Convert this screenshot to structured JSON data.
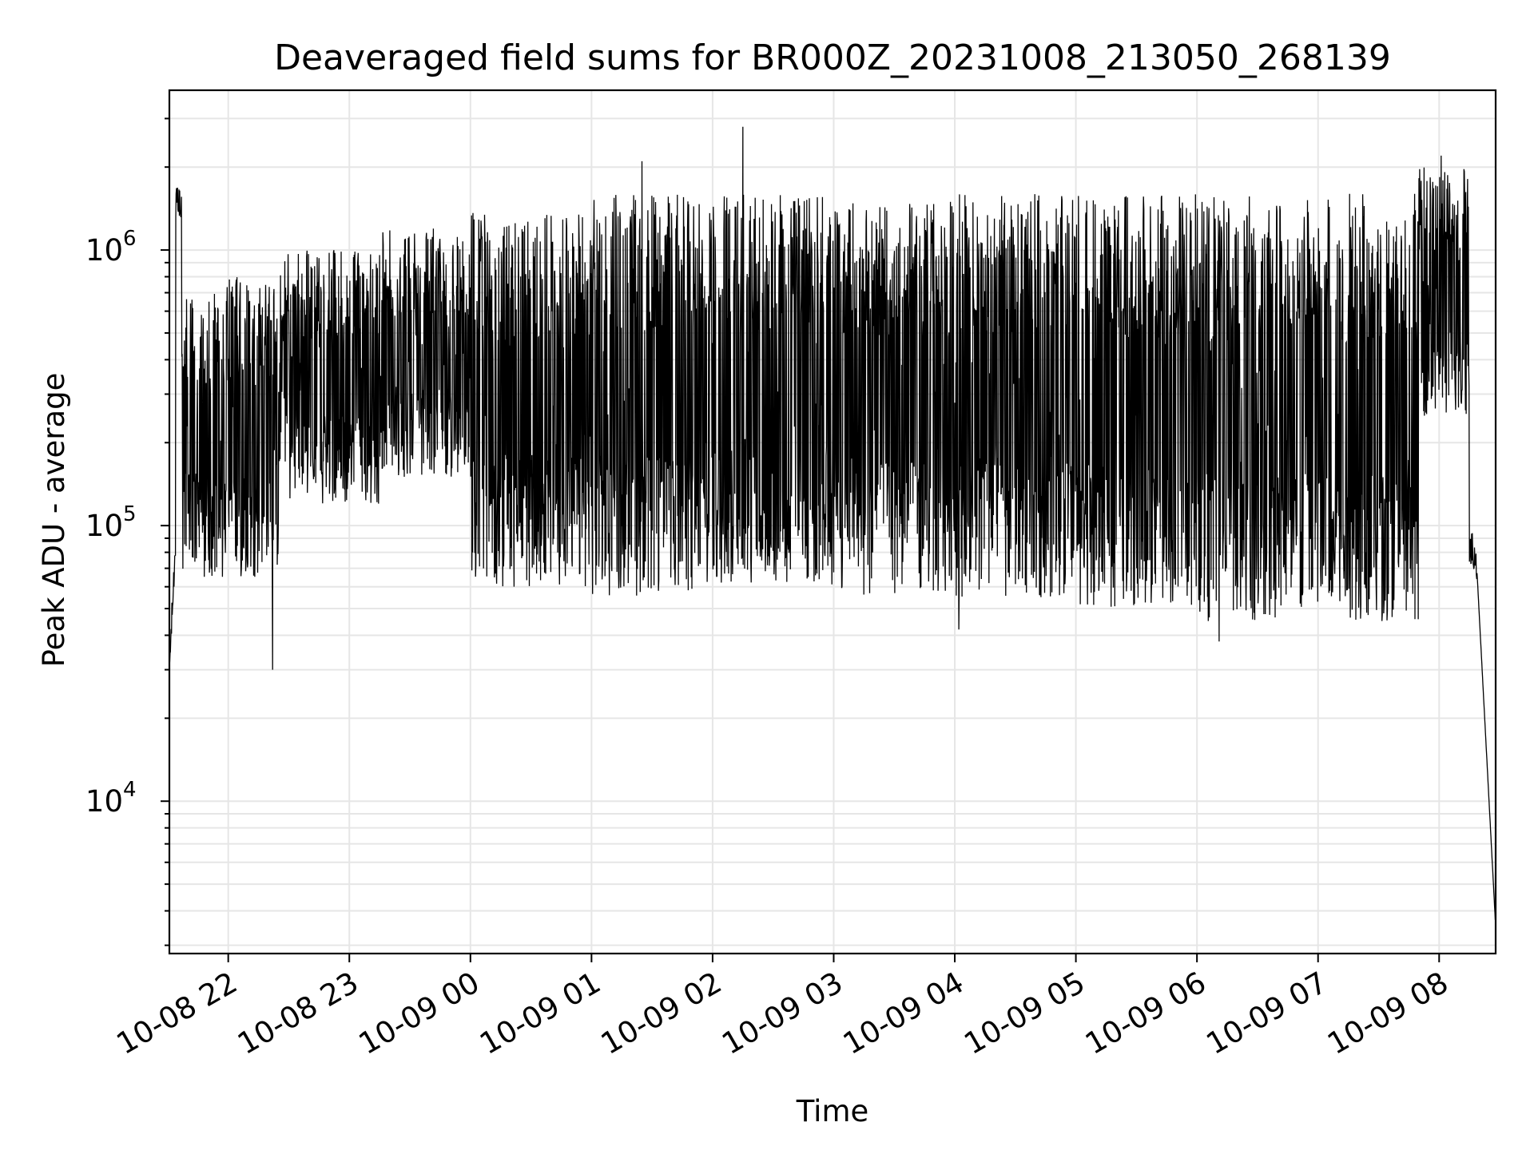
{
  "chart_data": {
    "type": "line",
    "title": "Deaveraged field sums for BR000Z_20231008_213050_268139",
    "xlabel": "Time",
    "ylabel": "Peak ADU - average",
    "yscale": "log",
    "ylim": [
      2800,
      3800000
    ],
    "xlim": [
      "2023-10-08 21:30:50",
      "2023-10-09 08:28:00"
    ],
    "grid": true,
    "grid_minor_y": true,
    "line_color": "#000000",
    "x_ticks": [
      {
        "t": "2023-10-08 22:00",
        "label": "10-08 22"
      },
      {
        "t": "2023-10-08 23:00",
        "label": "10-08 23"
      },
      {
        "t": "2023-10-09 00:00",
        "label": "10-09 00"
      },
      {
        "t": "2023-10-09 01:00",
        "label": "10-09 01"
      },
      {
        "t": "2023-10-09 02:00",
        "label": "10-09 02"
      },
      {
        "t": "2023-10-09 03:00",
        "label": "10-09 03"
      },
      {
        "t": "2023-10-09 04:00",
        "label": "10-09 04"
      },
      {
        "t": "2023-10-09 05:00",
        "label": "10-09 05"
      },
      {
        "t": "2023-10-09 06:00",
        "label": "10-09 06"
      },
      {
        "t": "2023-10-09 07:00",
        "label": "10-09 07"
      },
      {
        "t": "2023-10-09 08:00",
        "label": "10-09 08"
      }
    ],
    "y_ticks": [
      {
        "value": 10000,
        "base": "10",
        "exp": "4"
      },
      {
        "value": 100000,
        "base": "10",
        "exp": "5"
      },
      {
        "value": 1000000,
        "base": "10",
        "exp": "6"
      }
    ],
    "segments": [
      {
        "start": "2023-10-08 21:30:50",
        "end": "2023-10-08 21:34",
        "lo": 30000,
        "hi": 90000,
        "note": "rise"
      },
      {
        "start": "2023-10-08 21:34",
        "end": "2023-10-08 21:37",
        "lo": 1300000,
        "hi": 1700000
      },
      {
        "start": "2023-10-08 21:37",
        "end": "2023-10-08 22:25",
        "lo": 65000,
        "hi": 800000
      },
      {
        "start": "2023-10-08 22:25",
        "end": "2023-10-08 23:15",
        "lo": 120000,
        "hi": 1000000
      },
      {
        "start": "2023-10-08 23:15",
        "end": "2023-10-09 00:00",
        "lo": 150000,
        "hi": 1200000
      },
      {
        "start": "2023-10-09 00:00",
        "end": "2023-10-09 01:00",
        "lo": 60000,
        "hi": 1400000
      },
      {
        "start": "2023-10-09 01:00",
        "end": "2023-10-09 02:00",
        "lo": 55000,
        "hi": 1600000
      },
      {
        "start": "2023-10-09 02:00",
        "end": "2023-10-09 03:00",
        "lo": 60000,
        "hi": 1600000
      },
      {
        "start": "2023-10-09 03:00",
        "end": "2023-10-09 04:00",
        "lo": 55000,
        "hi": 1500000
      },
      {
        "start": "2023-10-09 04:00",
        "end": "2023-10-09 05:00",
        "lo": 55000,
        "hi": 1600000
      },
      {
        "start": "2023-10-09 05:00",
        "end": "2023-10-09 06:00",
        "lo": 50000,
        "hi": 1600000
      },
      {
        "start": "2023-10-09 06:00",
        "end": "2023-10-09 07:00",
        "lo": 45000,
        "hi": 1600000
      },
      {
        "start": "2023-10-09 07:00",
        "end": "2023-10-09 07:50",
        "lo": 45000,
        "hi": 1600000
      },
      {
        "start": "2023-10-09 07:50",
        "end": "2023-10-09 08:15",
        "lo": 250000,
        "hi": 2000000
      },
      {
        "start": "2023-10-09 08:15",
        "end": "2023-10-09 08:28",
        "lo": 3500,
        "hi": 80000,
        "note": "fall"
      }
    ],
    "spikes": [
      {
        "t": "2023-10-09 02:15",
        "value": 2800000
      },
      {
        "t": "2023-10-09 01:25",
        "value": 2100000
      },
      {
        "t": "2023-10-09 08:01",
        "value": 2200000
      },
      {
        "t": "2023-10-08 22:22",
        "value": 30000
      },
      {
        "t": "2023-10-09 06:11",
        "value": 38000
      },
      {
        "t": "2023-10-09 04:02",
        "value": 42000
      }
    ]
  }
}
